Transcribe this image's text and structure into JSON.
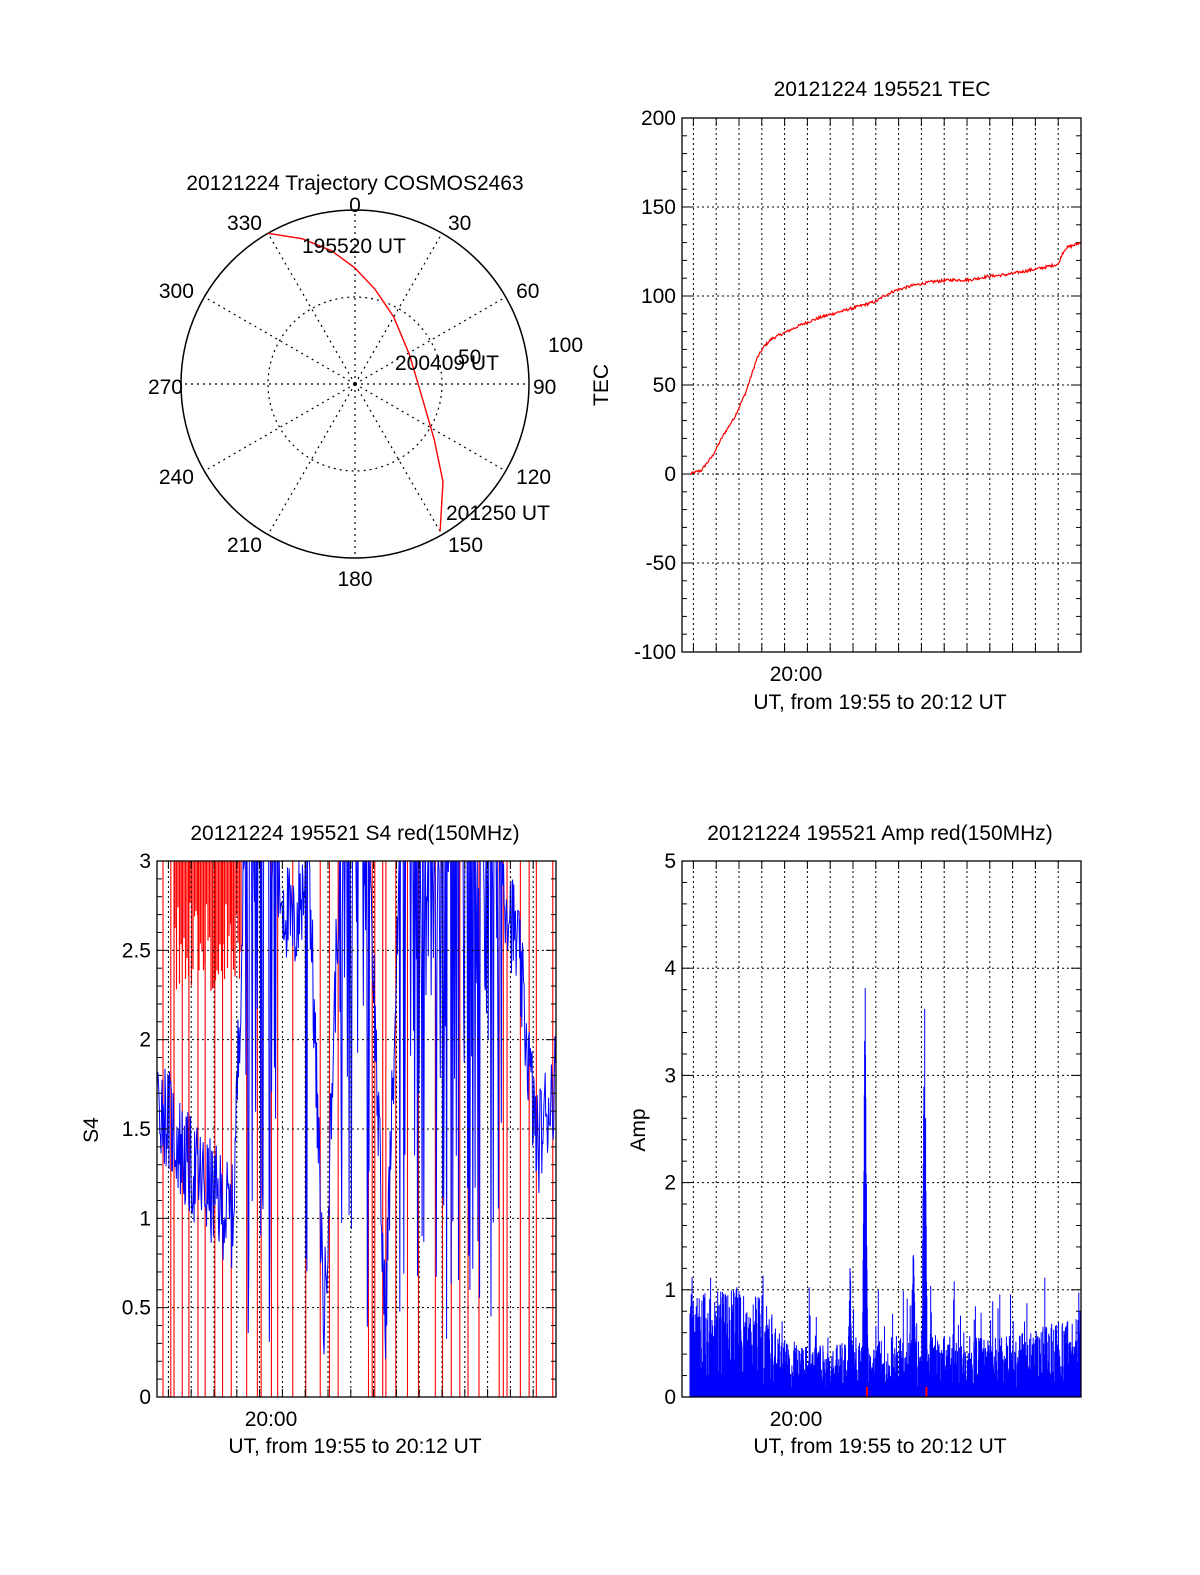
{
  "colors": {
    "red": "#ff0000",
    "blue": "#0000ff",
    "axis": "#000000"
  },
  "chart_data": [
    {
      "type": "polar",
      "title": "20121224 Trajectory COSMOS2463",
      "angle_labels": [
        "0",
        "30",
        "60",
        "90",
        "120",
        "150",
        "180",
        "210",
        "240",
        "270",
        "300",
        "330"
      ],
      "radius_labels": [
        "50",
        "100"
      ],
      "trajectory": {
        "color": "red",
        "points": [
          {
            "az": 330,
            "zen": 90
          },
          {
            "az": 340,
            "zen": 80
          },
          {
            "az": 350,
            "zen": 70
          },
          {
            "az": 0,
            "zen": 60
          },
          {
            "az": 12,
            "zen": 50
          },
          {
            "az": 30,
            "zen": 40
          },
          {
            "az": 62,
            "zen": 32
          },
          {
            "az": 100,
            "zen": 35
          },
          {
            "az": 125,
            "zen": 50
          },
          {
            "az": 138,
            "zen": 68
          },
          {
            "az": 150,
            "zen": 88
          }
        ],
        "labels": [
          {
            "az": 330,
            "zen": 90,
            "text": "195520 UT"
          },
          {
            "az": 75,
            "zen": 32,
            "text": "200409 UT"
          },
          {
            "az": 150,
            "zen": 88,
            "text": "201250 UT"
          }
        ]
      }
    },
    {
      "type": "line",
      "title": "20121224 195521 TEC",
      "ylabel": "TEC",
      "xlabel": "UT, from 19:55 to 20:12 UT",
      "xlim": [
        0,
        1050
      ],
      "ylim": [
        -100,
        200
      ],
      "yticks": [
        -100,
        -50,
        0,
        50,
        100,
        150,
        200
      ],
      "xtick_label": {
        "t": 300,
        "text": "20:00"
      },
      "grid": true,
      "series": [
        {
          "color": "red",
          "x": [
            0,
            30,
            60,
            90,
            120,
            150,
            180,
            200,
            220,
            260,
            300,
            350,
            400,
            450,
            500,
            520,
            550,
            600,
            650,
            700,
            750,
            800,
            850,
            900,
            950,
            990,
            1000,
            1010,
            1050
          ],
          "y": [
            0,
            2,
            10,
            22,
            32,
            46,
            65,
            72,
            76,
            80,
            84,
            88,
            91,
            94,
            97,
            100,
            103,
            106,
            108,
            109,
            109,
            111,
            112,
            114,
            116,
            118,
            124,
            127,
            130
          ]
        }
      ]
    },
    {
      "type": "bar",
      "title": "20121224 195521 S4 red(150MHz)",
      "ylabel": "S4",
      "xlabel": "UT, from 19:55 to 20:12 UT",
      "xlim": [
        0,
        1050
      ],
      "ylim": [
        0,
        3
      ],
      "yticks": [
        "0",
        "0.5",
        "1",
        "1.5",
        "2",
        "2.5",
        "3"
      ],
      "xtick_label": {
        "t": 300,
        "text": "20:00"
      },
      "grid": true,
      "series": [
        {
          "name": "red",
          "color": "red",
          "description_level": "spikes to 3"
        },
        {
          "name": "blue",
          "color": "blue",
          "envelope_x": [
            0,
            40,
            80,
            120,
            160,
            200,
            230,
            260,
            300,
            360,
            400,
            440,
            480,
            500,
            520,
            560,
            600,
            640,
            680,
            720,
            760,
            800,
            850,
            900,
            950,
            1000,
            1050
          ],
          "envelope_y": [
            1.7,
            1.5,
            1.3,
            1.2,
            1.1,
            1.0,
            3,
            3,
            3,
            2.6,
            3,
            0.4,
            3,
            3,
            3,
            3,
            0.4,
            3,
            3,
            3,
            3,
            3,
            3,
            3,
            2.5,
            1.4,
            1.8
          ]
        }
      ]
    },
    {
      "type": "bar",
      "title": "20121224 195521 Amp red(150MHz)",
      "ylabel": "Amp",
      "xlabel": "UT, from 19:55 to 20:12 UT",
      "xlim": [
        0,
        1050
      ],
      "ylim": [
        0,
        5
      ],
      "yticks": [
        "0",
        "1",
        "2",
        "3",
        "4",
        "5"
      ],
      "xtick_label": {
        "t": 300,
        "text": "20:00"
      },
      "grid": true,
      "series": [
        {
          "name": "blue",
          "color": "blue",
          "peaks": [
            {
              "x": 470,
              "y": 4.2
            },
            {
              "x": 430,
              "y": 1.3
            },
            {
              "x": 600,
              "y": 1.8
            },
            {
              "x": 630,
              "y": 4.2
            }
          ],
          "baseline_x": [
            0,
            100,
            200,
            250,
            300,
            400,
            500,
            600,
            700,
            800,
            900,
            1000,
            1050
          ],
          "baseline_y": [
            0.8,
            0.85,
            0.8,
            0.45,
            0.4,
            0.42,
            0.45,
            0.5,
            0.5,
            0.45,
            0.5,
            0.6,
            0.7
          ]
        },
        {
          "name": "red",
          "color": "red",
          "marks_x": [
            475,
            635
          ],
          "marks_y": [
            0.1,
            0.1
          ]
        }
      ]
    }
  ]
}
